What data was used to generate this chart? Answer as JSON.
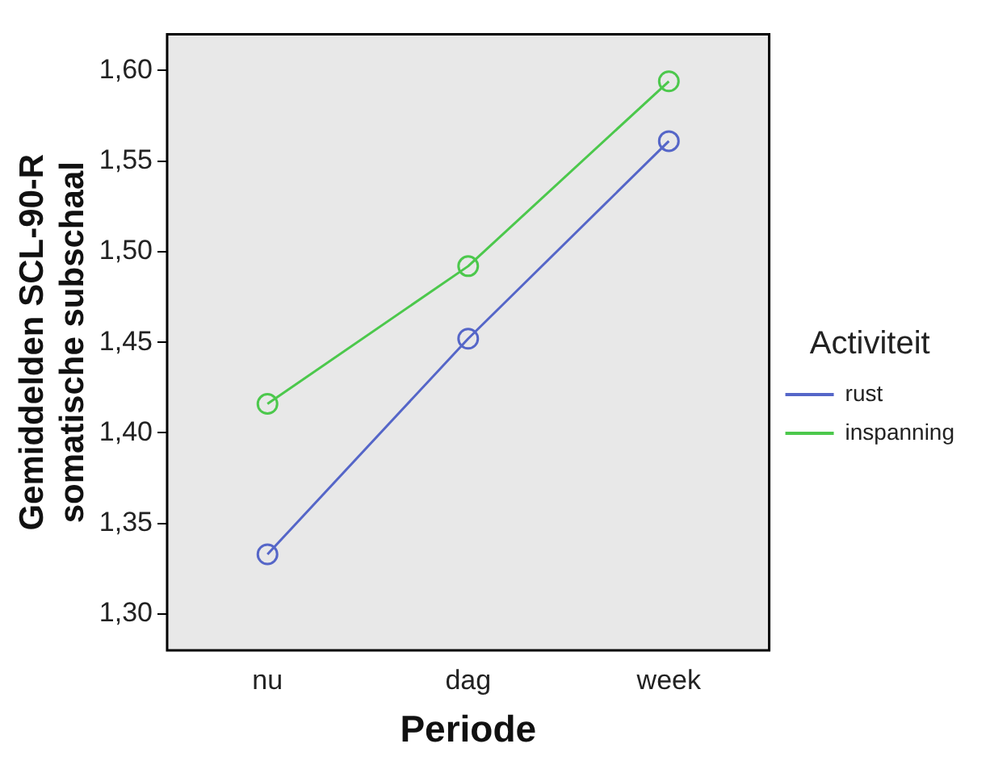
{
  "chart_data": {
    "type": "line",
    "xlabel": "Periode",
    "ylabel": "Gemiddelden SCL-90-R somatische subschaal",
    "legend_title": "Activiteit",
    "categories": [
      "nu",
      "dag",
      "week"
    ],
    "series": [
      {
        "name": "rust",
        "color": "#5566c8",
        "values": [
          1.333,
          1.452,
          1.561
        ]
      },
      {
        "name": "inspanning",
        "color": "#4cc84c",
        "values": [
          1.416,
          1.492,
          1.594
        ]
      }
    ],
    "ylim": [
      1.28,
      1.62
    ],
    "yticks": [
      {
        "value": 1.3,
        "label": "1,30"
      },
      {
        "value": 1.35,
        "label": "1,35"
      },
      {
        "value": 1.4,
        "label": "1,40"
      },
      {
        "value": 1.45,
        "label": "1,45"
      },
      {
        "value": 1.5,
        "label": "1,50"
      },
      {
        "value": 1.55,
        "label": "1,55"
      },
      {
        "value": 1.6,
        "label": "1,60"
      }
    ],
    "grid": false,
    "legend": "right",
    "marker": "circle",
    "line_style": "solid"
  }
}
